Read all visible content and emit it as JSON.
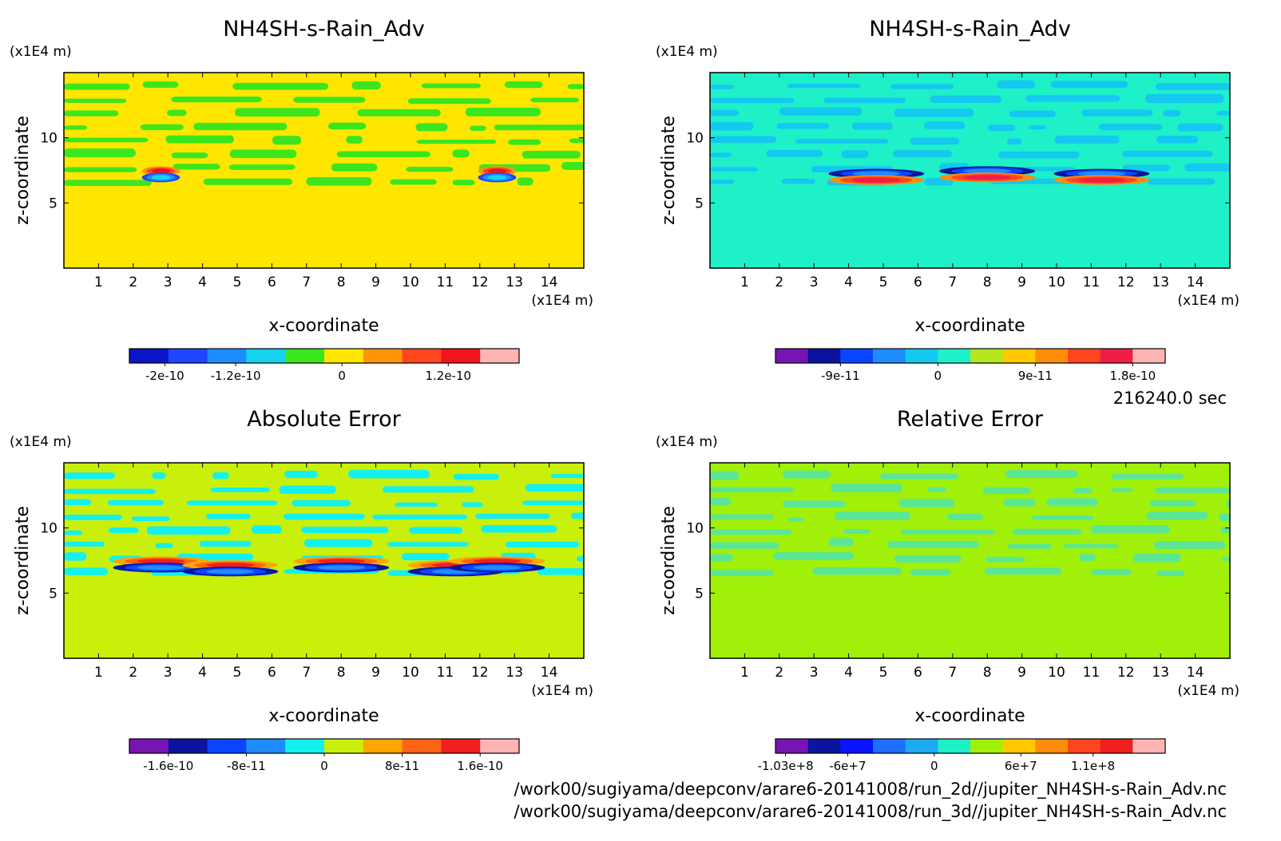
{
  "time_label": "216240.0 sec",
  "file_paths": [
    "/work00/sugiyama/deepconv/arare6-20141008/run_2d//jupiter_NH4SH-s-Rain_Adv.nc",
    "/work00/sugiyama/deepconv/arare6-20141008/run_3d//jupiter_NH4SH-s-Rain_Adv.nc"
  ],
  "chart_data": [
    {
      "type": "heatmap",
      "title": "NH4SH-s-Rain_Adv",
      "xlabel": "x-coordinate",
      "ylabel": "z-coordinate",
      "x_unit": "(x1E4 m)",
      "y_unit": "(x1E4 m)",
      "xlim": [
        0,
        15
      ],
      "ylim": [
        0,
        15
      ],
      "xticks": [
        "1",
        "2",
        "3",
        "4",
        "5",
        "6",
        "7",
        "8",
        "9",
        "10",
        "11",
        "12",
        "13",
        "14"
      ],
      "yticks": [
        "5",
        "10"
      ],
      "colorbar": {
        "colors": [
          "#0a14c8",
          "#1e46ff",
          "#1e8cff",
          "#14d2f0",
          "#3ce61e",
          "#ffe600",
          "#ff960a",
          "#ff461e",
          "#f0141e",
          "#ffb4b4"
        ],
        "tick_labels": [
          "-2e-10",
          "-1.2e-10",
          "0",
          "1.2e-10"
        ],
        "tick_values": [
          -2e-10,
          -1.2e-10,
          0,
          1.2e-10
        ],
        "range": [
          -2.4e-10,
          2e-10
        ]
      },
      "background_color": "#ffe600",
      "features": {
        "layer_colors": [
          "#3ce61e",
          "#ffe600"
        ],
        "cloud_base_z": 6.4,
        "cloud_top_z": 14.8,
        "cells": [
          {
            "x": 2.8,
            "z": 7.2,
            "polarity": "pos-over-neg"
          },
          {
            "x": 12.5,
            "z": 7.2,
            "polarity": "pos-over-neg"
          }
        ]
      }
    },
    {
      "type": "heatmap",
      "title": "NH4SH-s-Rain_Adv",
      "xlabel": "x-coordinate",
      "ylabel": "z-coordinate",
      "x_unit": "(x1E4 m)",
      "y_unit": "(x1E4 m)",
      "xlim": [
        0,
        15
      ],
      "ylim": [
        0,
        15
      ],
      "xticks": [
        "1",
        "2",
        "3",
        "4",
        "5",
        "6",
        "7",
        "8",
        "9",
        "10",
        "11",
        "12",
        "13",
        "14"
      ],
      "yticks": [
        "5",
        "10"
      ],
      "colorbar": {
        "colors": [
          "#7814b4",
          "#0a14a0",
          "#0a46ff",
          "#1e8cff",
          "#14c8f0",
          "#1ef0c8",
          "#b4e61e",
          "#ffc800",
          "#ff8c0a",
          "#ff461e",
          "#f01e46",
          "#ffb4b4"
        ],
        "tick_labels": [
          "-9e-11",
          "0",
          "9e-11",
          "1.8e-10"
        ],
        "tick_values": [
          -9e-11,
          0,
          9e-11,
          1.8e-10
        ],
        "range": [
          -1.5e-10,
          2.1e-10
        ]
      },
      "background_color": "#1ef0c8",
      "features": {
        "layer_colors": [
          "#14c8f0",
          "#1ef0c8"
        ],
        "cloud_base_z": 6.4,
        "cloud_top_z": 14.8,
        "cells": [
          {
            "x": 4.8,
            "z": 7.0,
            "polarity": "neg-over-pos"
          },
          {
            "x": 8.0,
            "z": 7.2,
            "polarity": "neg-over-pos"
          },
          {
            "x": 11.3,
            "z": 7.0,
            "polarity": "neg-over-pos"
          }
        ]
      }
    },
    {
      "type": "heatmap",
      "title": "Absolute Error",
      "xlabel": "x-coordinate",
      "ylabel": "z-coordinate",
      "x_unit": "(x1E4 m)",
      "y_unit": "(x1E4 m)",
      "xlim": [
        0,
        15
      ],
      "ylim": [
        0,
        15
      ],
      "xticks": [
        "1",
        "2",
        "3",
        "4",
        "5",
        "6",
        "7",
        "8",
        "9",
        "10",
        "11",
        "12",
        "13",
        "14"
      ],
      "yticks": [
        "5",
        "10"
      ],
      "colorbar": {
        "colors": [
          "#7814b4",
          "#0a14a0",
          "#0a46ff",
          "#1e8cff",
          "#14f0f0",
          "#c8f00a",
          "#ffa500",
          "#ff6414",
          "#f01e1e",
          "#ffb4b4"
        ],
        "tick_labels": [
          "-1.6e-10",
          "-8e-11",
          "0",
          "8e-11",
          "1.6e-10"
        ],
        "tick_values": [
          -1.6e-10,
          -8e-11,
          0,
          8e-11,
          1.6e-10
        ],
        "range": [
          -2e-10,
          2e-10
        ]
      },
      "background_color": "#c8f00a",
      "features": {
        "layer_colors": [
          "#14f0f0",
          "#c8f00a"
        ],
        "cloud_base_z": 6.4,
        "cloud_top_z": 14.8,
        "cells": [
          {
            "x": 2.8,
            "z": 7.2,
            "polarity": "pos-over-neg"
          },
          {
            "x": 4.8,
            "z": 6.9,
            "polarity": "pos-over-neg"
          },
          {
            "x": 8.0,
            "z": 7.2,
            "polarity": "pos-over-neg"
          },
          {
            "x": 11.3,
            "z": 6.9,
            "polarity": "pos-over-neg"
          },
          {
            "x": 12.5,
            "z": 7.2,
            "polarity": "pos-over-neg"
          }
        ]
      }
    },
    {
      "type": "heatmap",
      "title": "Relative Error",
      "xlabel": "x-coordinate",
      "ylabel": "z-coordinate",
      "x_unit": "(x1E4 m)",
      "y_unit": "(x1E4 m)",
      "xlim": [
        0,
        15
      ],
      "ylim": [
        0,
        15
      ],
      "xticks": [
        "1",
        "2",
        "3",
        "4",
        "5",
        "6",
        "7",
        "8",
        "9",
        "10",
        "11",
        "12",
        "13",
        "14"
      ],
      "yticks": [
        "5",
        "10"
      ],
      "colorbar": {
        "colors": [
          "#7814b4",
          "#0a14a0",
          "#0a14ff",
          "#1e6eff",
          "#1eaaf0",
          "#1ef0c8",
          "#a0f00a",
          "#ffc800",
          "#ff8c0a",
          "#ff461e",
          "#f01e1e",
          "#ffb4b4"
        ],
        "tick_labels": [
          "-1.03e+8",
          "-6e+7",
          "0",
          "6e+7",
          "1.1e+8"
        ],
        "tick_values": [
          -103000000.0,
          -60000000.0,
          0,
          60000000.0,
          110000000.0
        ],
        "range": [
          -110000000.0,
          160000000.0
        ]
      },
      "background_color": "#a0f00a",
      "features": {
        "layer_colors": [
          "#5ae696",
          "#a0f00a"
        ],
        "cloud_base_z": 6.4,
        "cloud_top_z": 14.8,
        "cells": []
      }
    }
  ]
}
